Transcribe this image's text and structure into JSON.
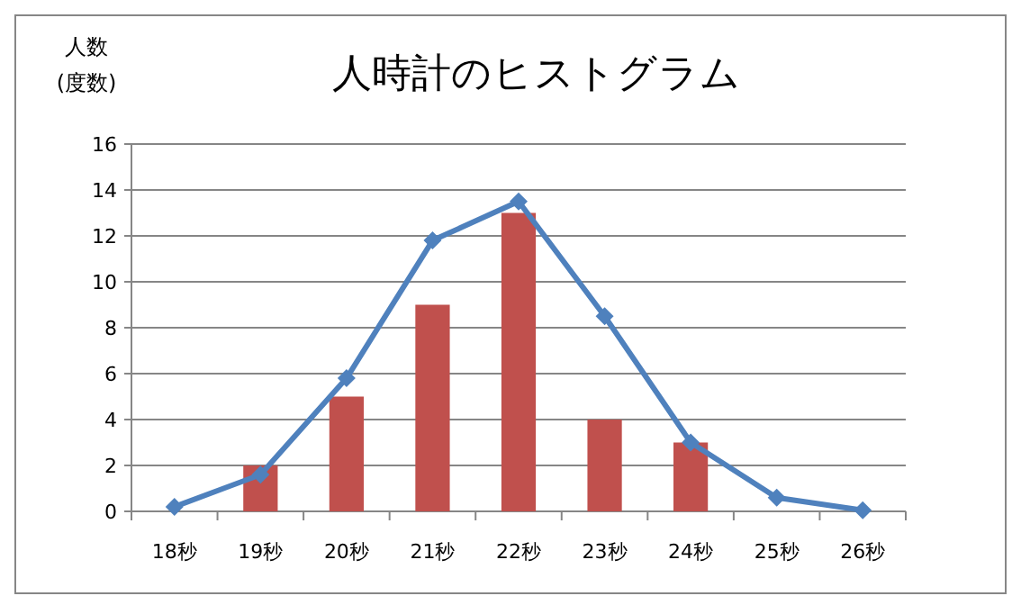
{
  "chart_data": {
    "type": "bar",
    "title": "人時計のヒストグラム",
    "ylabel": "人数\n(度数)",
    "categories": [
      "18秒",
      "19秒",
      "20秒",
      "21秒",
      "22秒",
      "23秒",
      "24秒",
      "25秒",
      "26秒"
    ],
    "series": [
      {
        "color": "#c0504d",
        "values": [
          0,
          2,
          5,
          9,
          13,
          4,
          3,
          0,
          0
        ]
      },
      {
        "type": "line",
        "color": "#4f81bd",
        "marker": "diamond",
        "values": [
          0.2,
          1.6,
          5.8,
          11.8,
          13.5,
          8.5,
          3.0,
          0.6,
          0.05
        ]
      }
    ],
    "ylim": [
      0,
      16
    ],
    "yticks": [
      0,
      2,
      4,
      6,
      8,
      10,
      12,
      14,
      16
    ],
    "grid": "y"
  }
}
